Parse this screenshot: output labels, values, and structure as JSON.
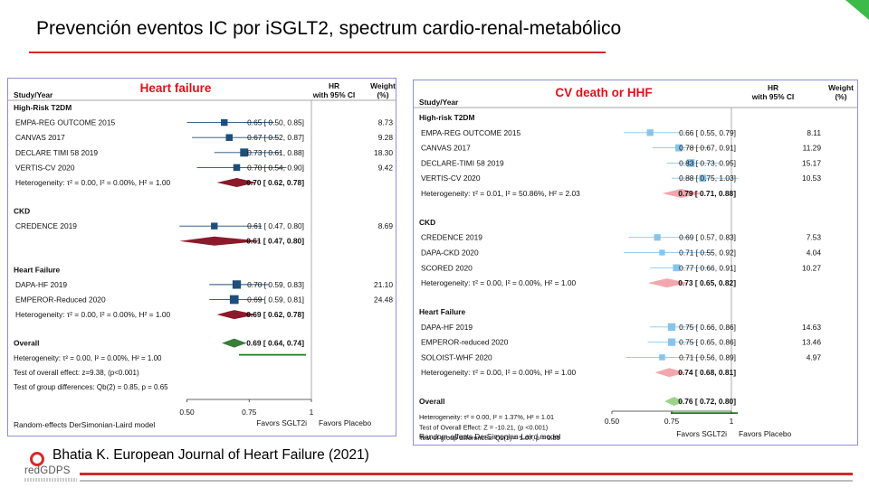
{
  "slide": {
    "title": "Prevención eventos IC por iSGLT2, spectrum cardio-renal-metabólico",
    "citation": "Bhatia K. European Journal of Heart Failure (2021)",
    "logo_text": "redGDPS",
    "colors": {
      "accent": "#d42a2a",
      "corner": "#3dbb4a"
    }
  },
  "chart_data": [
    {
      "type": "forest",
      "title": "Heart failure",
      "col_study": "Study/Year",
      "col_hr_line1": "HR",
      "col_hr_line2": "with 95% CI",
      "col_weight_line1": "Weight",
      "col_weight_line2": "(%)",
      "xlim": [
        0.4,
        1.0
      ],
      "xticks": [
        {
          "value": 0.5,
          "label": "0.50"
        },
        {
          "value": 0.75,
          "label": "0.75"
        },
        {
          "value": 1,
          "label": "1"
        }
      ],
      "favors_left": "Favors SGLT2i",
      "favors_right": "Favors Placebo",
      "footer": "Random-effects DerSimonian-Laird model",
      "colors": {
        "square": "#1f4e79",
        "subtotal": "#8b1a2b",
        "overall": "#3a7d3a",
        "underline": "#1f7a1f"
      },
      "rows": [
        {
          "kind": "header",
          "label": "High-Risk T2DM"
        },
        {
          "kind": "study",
          "label": "EMPA-REG OUTCOME 2015",
          "hr": 0.65,
          "lo": 0.5,
          "hi": 0.85,
          "ci_text": "0.65 [ 0.50,  0.85]",
          "weight": "8.73"
        },
        {
          "kind": "study",
          "label": "CANVAS 2017",
          "hr": 0.67,
          "lo": 0.52,
          "hi": 0.87,
          "ci_text": "0.67 [ 0.52,  0.87]",
          "weight": "9.28"
        },
        {
          "kind": "study",
          "label": "DECLARE TIMI 58 2019",
          "hr": 0.73,
          "lo": 0.61,
          "hi": 0.88,
          "ci_text": "0.73 [ 0.61,  0.88]",
          "weight": "18.30"
        },
        {
          "kind": "study",
          "label": "VERTIS-CV 2020",
          "hr": 0.7,
          "lo": 0.54,
          "hi": 0.9,
          "ci_text": "0.70 [ 0.54,  0.90]",
          "weight": "9.42"
        },
        {
          "kind": "subtotal",
          "label": "Heterogeneity: τ² = 0.00, I² = 0.00%, H² = 1.00",
          "hr": 0.7,
          "lo": 0.62,
          "hi": 0.78,
          "ci_text": "0.70 [ 0.62,  0.78]"
        },
        {
          "kind": "spacer"
        },
        {
          "kind": "header",
          "label": "CKD"
        },
        {
          "kind": "study",
          "label": "CREDENCE 2019",
          "hr": 0.61,
          "lo": 0.47,
          "hi": 0.8,
          "ci_text": "0.61 [ 0.47,  0.80]",
          "weight": "8.69"
        },
        {
          "kind": "subtotal",
          "label": "",
          "hr": 0.61,
          "lo": 0.47,
          "hi": 0.8,
          "ci_text": "0.61 [ 0.47,  0.80]"
        },
        {
          "kind": "spacer"
        },
        {
          "kind": "header",
          "label": "Heart Failure"
        },
        {
          "kind": "study",
          "label": "DAPA-HF 2019",
          "hr": 0.7,
          "lo": 0.59,
          "hi": 0.83,
          "ci_text": "0.70 [ 0.59,  0.83]",
          "weight": "21.10"
        },
        {
          "kind": "study",
          "label": "EMPEROR-Reduced 2020",
          "hr": 0.69,
          "lo": 0.59,
          "hi": 0.81,
          "ci_text": "0.69 [ 0.59,  0.81]",
          "weight": "24.48"
        },
        {
          "kind": "subtotal",
          "label": "Heterogeneity: τ² = 0.00, I² = 0.00%, H² = 1.00",
          "hr": 0.69,
          "lo": 0.62,
          "hi": 0.78,
          "ci_text": "0.69 [ 0.62,  0.78]"
        },
        {
          "kind": "spacer"
        },
        {
          "kind": "overall",
          "label": "Overall",
          "hr": 0.69,
          "lo": 0.64,
          "hi": 0.74,
          "ci_text": "0.69 [ 0.64,  0.74]"
        },
        {
          "kind": "note",
          "label": "Heterogeneity: τ² = 0.00, I² = 0.00%, H² = 1.00"
        },
        {
          "kind": "note",
          "label": "Test of overall effect: z=9.38, (p<0.001)"
        },
        {
          "kind": "note",
          "label": "Test of group differences: Qb(2) = 0.85, p = 0.65"
        }
      ]
    },
    {
      "type": "forest",
      "title": "CV death or HHF",
      "col_study": "Study/Year",
      "col_hr_line1": "HR",
      "col_hr_line2": "with 95% CI",
      "col_weight_line1": "Weight",
      "col_weight_line2": "(%)",
      "xlim": [
        0.5,
        1.0
      ],
      "xticks": [
        {
          "value": 0.5,
          "label": "0.50"
        },
        {
          "value": 0.75,
          "label": "0.75"
        },
        {
          "value": 1,
          "label": "1"
        }
      ],
      "favors_left": "Favors SGLT2i",
      "favors_right": "Favors Placebo",
      "footer": "Random-effects DerSimonian-Laird model",
      "colors": {
        "square": "#87c4ec",
        "subtotal": "#f2a7ad",
        "overall": "#9fd28a",
        "underline": "#1f7a1f"
      },
      "rows": [
        {
          "kind": "header",
          "label": "High-risk T2DM"
        },
        {
          "kind": "study",
          "label": "EMPA-REG OUTCOME 2015",
          "hr": 0.66,
          "lo": 0.55,
          "hi": 0.79,
          "ci_text": "0.66 [ 0.55,  0.79]",
          "weight": "8.11"
        },
        {
          "kind": "study",
          "label": "CANVAS 2017",
          "hr": 0.78,
          "lo": 0.67,
          "hi": 0.91,
          "ci_text": "0.78 [ 0.67,  0.91]",
          "weight": "11.29"
        },
        {
          "kind": "study",
          "label": "DECLARE-TIMI 58 2019",
          "hr": 0.83,
          "lo": 0.73,
          "hi": 0.95,
          "ci_text": "0.83 [ 0.73,  0.95]",
          "weight": "15.17"
        },
        {
          "kind": "study",
          "label": "VERTIS-CV 2020",
          "hr": 0.88,
          "lo": 0.75,
          "hi": 1.03,
          "ci_text": "0.88 [ 0.75,  1.03]",
          "weight": "10.53"
        },
        {
          "kind": "subtotal",
          "label": "Heterogeneity: τ² = 0.01, I² = 50.86%, H² = 2.03",
          "hr": 0.79,
          "lo": 0.71,
          "hi": 0.88,
          "ci_text": "0.79 [ 0.71,  0.88]"
        },
        {
          "kind": "spacer"
        },
        {
          "kind": "header",
          "label": "CKD"
        },
        {
          "kind": "study",
          "label": "CREDENCE 2019",
          "hr": 0.69,
          "lo": 0.57,
          "hi": 0.83,
          "ci_text": "0.69 [ 0.57,  0.83]",
          "weight": "7.53"
        },
        {
          "kind": "study",
          "label": "DAPA-CKD 2020",
          "hr": 0.71,
          "lo": 0.55,
          "hi": 0.92,
          "ci_text": "0.71 [ 0.55,  0.92]",
          "weight": "4.04"
        },
        {
          "kind": "study",
          "label": "SCORED 2020",
          "hr": 0.77,
          "lo": 0.66,
          "hi": 0.91,
          "ci_text": "0.77 [ 0.66,  0.91]",
          "weight": "10.27"
        },
        {
          "kind": "subtotal",
          "label": "Heterogeneity: τ² = 0.00, I² = 0.00%, H² = 1.00",
          "hr": 0.73,
          "lo": 0.65,
          "hi": 0.82,
          "ci_text": "0.73 [ 0.65,  0.82]"
        },
        {
          "kind": "spacer"
        },
        {
          "kind": "header",
          "label": "Heart Failure"
        },
        {
          "kind": "study",
          "label": "DAPA-HF 2019",
          "hr": 0.75,
          "lo": 0.66,
          "hi": 0.86,
          "ci_text": "0.75 [ 0.66,  0.86]",
          "weight": "14.63"
        },
        {
          "kind": "study",
          "label": "EMPEROR-reduced 2020",
          "hr": 0.75,
          "lo": 0.65,
          "hi": 0.86,
          "ci_text": "0.75 [ 0.65,  0.86]",
          "weight": "13.46"
        },
        {
          "kind": "study",
          "label": "SOLOIST-WHF 2020",
          "hr": 0.71,
          "lo": 0.56,
          "hi": 0.89,
          "ci_text": "0.71 [ 0.56,  0.89]",
          "weight": "4.97"
        },
        {
          "kind": "subtotal",
          "label": "Heterogeneity: τ² = 0.00, I² = 0.00%, H² = 1.00",
          "hr": 0.74,
          "lo": 0.68,
          "hi": 0.81,
          "ci_text": "0.74 [ 0.68,  0.81]"
        },
        {
          "kind": "spacer"
        },
        {
          "kind": "overall",
          "label": "Overall",
          "hr": 0.76,
          "lo": 0.72,
          "hi": 0.8,
          "ci_text": "0.76 [ 0.72,  0.80]"
        },
        {
          "kind": "note",
          "label": "Heterogeneity: τ² = 0.00, I² = 1.37%, H² = 1.01"
        },
        {
          "kind": "note",
          "label": "Test of Overall Effect: Z = -10.21, (p <0.001)"
        },
        {
          "kind": "note",
          "label": "Test of group differences: Qb(2) = 1.07, p = 0.59"
        }
      ]
    }
  ]
}
